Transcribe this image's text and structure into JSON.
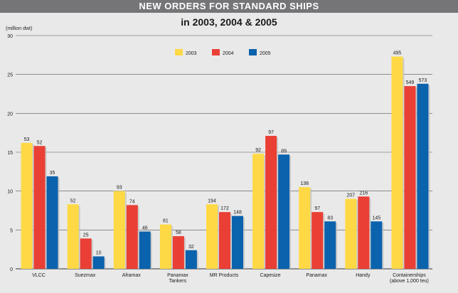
{
  "header": {
    "title": "NEW ORDERS FOR STANDARD SHIPS",
    "subtitle": "in 2003, 2004 & 2005",
    "unit_label": "(million dwt)"
  },
  "chart_data": {
    "type": "bar",
    "title": "NEW ORDERS FOR STANDARD SHIPS",
    "subtitle": "in 2003, 2004 & 2005",
    "ylabel": "(million dwt)",
    "ylim": [
      0,
      30
    ],
    "yticks": [
      0,
      5,
      10,
      15,
      20,
      25,
      30
    ],
    "grid": true,
    "legend_position": "top-center",
    "categories": [
      [
        "VLCC"
      ],
      [
        "Suezmax"
      ],
      [
        "Aframax"
      ],
      [
        "Panamax",
        "Tankers"
      ],
      [
        "MR Products"
      ],
      [
        "Capesize"
      ],
      [
        "Panamax"
      ],
      [
        "Handy"
      ],
      [
        "Containerships",
        "(above 1,000 teu)"
      ]
    ],
    "series": [
      {
        "name": "2003",
        "color": "#ffd945",
        "values": [
          16.2,
          8.3,
          10.0,
          5.7,
          8.3,
          14.8,
          10.5,
          9.0,
          27.3
        ],
        "labels": [
          "53",
          "52",
          "93",
          "81",
          "194",
          "92",
          "138",
          "207",
          "495"
        ]
      },
      {
        "name": "2004",
        "color": "#ea3f35",
        "values": [
          15.8,
          3.9,
          8.2,
          4.2,
          7.3,
          17.1,
          7.3,
          9.3,
          23.5
        ],
        "labels": [
          "52",
          "25",
          "74",
          "58",
          "172",
          "97",
          "97",
          "216",
          "549"
        ]
      },
      {
        "name": "2005",
        "color": "#0b62ad",
        "values": [
          11.9,
          1.6,
          4.8,
          2.4,
          6.8,
          14.7,
          6.1,
          6.1,
          23.8
        ],
        "labels": [
          "35",
          "10",
          "46",
          "32",
          "148",
          "89",
          "83",
          "145",
          "573"
        ]
      }
    ]
  }
}
